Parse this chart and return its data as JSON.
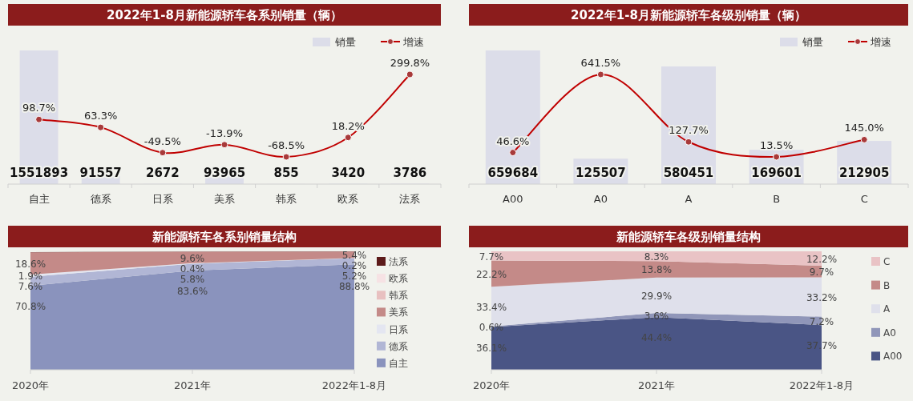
{
  "chart_data": [
    {
      "type": "bar",
      "title": "2022年1-8月新能源轿车各系别销量（辆）",
      "legend": "top right",
      "categories": [
        "自主",
        "德系",
        "日系",
        "美系",
        "韩系",
        "欧系",
        "法系"
      ],
      "series": [
        {
          "name": "销量",
          "type": "bar",
          "color": "#dcdde9",
          "values": [
            1551893,
            91557,
            2672,
            93965,
            855,
            3420,
            3786
          ],
          "value_labels": [
            "1551893",
            "91557",
            "2672",
            "93965",
            "855",
            "3420",
            "3786"
          ]
        },
        {
          "name": "增速",
          "type": "line",
          "axis": "y2",
          "color": "#c00000",
          "marker": "circle",
          "values": [
            98.7,
            63.3,
            -49.5,
            -13.9,
            -68.5,
            18.2,
            299.8
          ],
          "value_labels": [
            "98.7%",
            "63.3%",
            "-49.5%",
            "-13.9%",
            "-68.5%",
            "18.2%",
            "299.8%"
          ]
        }
      ]
    },
    {
      "type": "bar",
      "title": "2022年1-8月新能源轿车各级别销量（辆）",
      "legend": "top right",
      "categories": [
        "A00",
        "A0",
        "A",
        "B",
        "C"
      ],
      "series": [
        {
          "name": "销量",
          "type": "bar",
          "color": "#dcdde9",
          "values": [
            659684,
            125507,
            580451,
            169601,
            212905
          ],
          "value_labels": [
            "659684",
            "125507",
            "580451",
            "169601",
            "212905"
          ]
        },
        {
          "name": "增速",
          "type": "line",
          "axis": "y2",
          "color": "#c00000",
          "marker": "circle",
          "values": [
            46.6,
            641.5,
            127.7,
            13.5,
            145.0
          ],
          "value_labels": [
            "46.6%",
            "641.5%",
            "127.7%",
            "13.5%",
            "145.0%"
          ]
        }
      ]
    },
    {
      "type": "area",
      "title": "新能源轿车各系别销量结构",
      "stacked": true,
      "legend": "right",
      "categories": [
        "2020年",
        "2021年",
        "2022年1-8月"
      ],
      "series": [
        {
          "name": "自主",
          "color": "#8a93bd",
          "values": [
            70.8,
            83.6,
            88.8
          ],
          "value_labels": [
            "70.8%",
            "83.6%",
            "88.8%"
          ]
        },
        {
          "name": "德系",
          "color": "#b1b6d5",
          "values": [
            7.6,
            5.8,
            5.2
          ],
          "value_labels": [
            "7.6%",
            "5.8%",
            "5.2%"
          ]
        },
        {
          "name": "日系",
          "color": "#e4e6f1",
          "values": [
            1.9,
            0.4,
            0.2
          ],
          "value_labels": [
            "1.9%",
            "0.4%",
            "0.2%"
          ]
        },
        {
          "name": "美系",
          "color": "#c48a88",
          "values": [
            18.6,
            9.6,
            5.4
          ],
          "value_labels": [
            "18.6%",
            "9.6%",
            "5.4%"
          ]
        },
        {
          "name": "韩系",
          "color": "#e8c0c0",
          "values": [
            null,
            null,
            null
          ],
          "value_labels": [
            null,
            null,
            null
          ]
        },
        {
          "name": "欧系",
          "color": "#f6e2e4",
          "values": [
            null,
            null,
            null
          ],
          "value_labels": [
            null,
            null,
            null
          ]
        },
        {
          "name": "法系",
          "color": "#5c1a1a",
          "values": [
            0.3,
            0.2,
            0.2
          ],
          "value_labels": [
            null,
            null,
            null
          ]
        }
      ]
    },
    {
      "type": "area",
      "title": "新能源轿车各级别销量结构",
      "stacked": true,
      "legend": "right",
      "categories": [
        "2020年",
        "2021年",
        "2022年1-8月"
      ],
      "series": [
        {
          "name": "A00",
          "color": "#4a5585",
          "values": [
            36.1,
            44.4,
            37.7
          ],
          "value_labels": [
            "36.1%",
            "44.4%",
            "37.7%"
          ]
        },
        {
          "name": "A0",
          "color": "#9096b9",
          "values": [
            0.6,
            3.6,
            7.2
          ],
          "value_labels": [
            "0.6%",
            "3.6%",
            "7.2%"
          ]
        },
        {
          "name": "A",
          "color": "#dfe0eb",
          "values": [
            33.4,
            29.9,
            33.2
          ],
          "value_labels": [
            "33.4%",
            "29.9%",
            "33.2%"
          ]
        },
        {
          "name": "B",
          "color": "#c48a88",
          "values": [
            22.2,
            13.8,
            9.7
          ],
          "value_labels": [
            "22.2%",
            "13.8%",
            "9.7%"
          ]
        },
        {
          "name": "C",
          "color": "#e9c3c5",
          "values": [
            7.7,
            8.3,
            12.2
          ],
          "value_labels": [
            "7.7%",
            "8.3%",
            "12.2%"
          ]
        }
      ]
    }
  ]
}
